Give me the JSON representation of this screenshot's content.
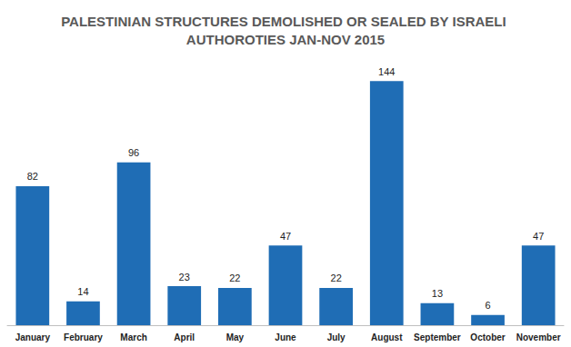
{
  "chart_data": {
    "type": "bar",
    "title": "PALESTINIAN STRUCTURES DEMOLISHED OR SEALED BY ISRAELI AUTHOROTIES JAN-NOV 2015",
    "categories": [
      "January",
      "February",
      "March",
      "April",
      "May",
      "June",
      "July",
      "August",
      "September",
      "October",
      "November"
    ],
    "values": [
      82,
      14,
      96,
      23,
      22,
      47,
      22,
      144,
      13,
      6,
      47
    ],
    "color": "#1f6db5",
    "ylim": [
      0,
      150
    ],
    "grid": false,
    "data_labels": true,
    "tick_labels": "x"
  }
}
